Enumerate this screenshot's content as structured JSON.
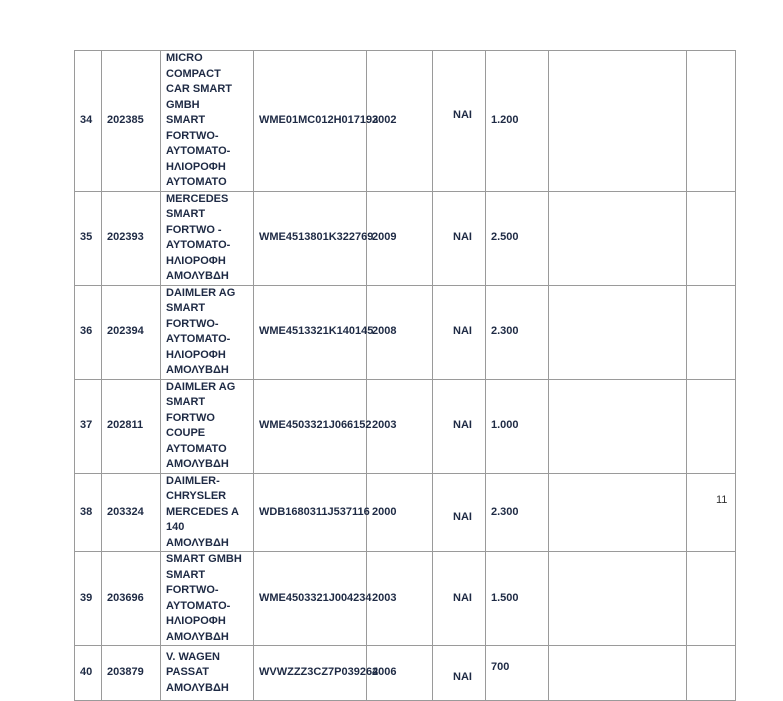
{
  "rows": [
    {
      "no": "34",
      "code": "202385",
      "desc": [
        "MICRO COMPACT",
        "CAR SMART GMBH",
        "SMART FORTWO-",
        "ΑΥΤΟΜΑΤΟ-",
        "ΗΛΙΟΡΟΦΗ",
        "ΑΥΤΟΜΑΤΟ"
      ],
      "vin": "WME01MC012H017193",
      "year": "2002",
      "flag": "ΝΑΙ",
      "price": "1.200"
    },
    {
      "no": "35",
      "code": "202393",
      "desc": [
        "MERCEDES",
        "SMART FORTWO -",
        "ΑΥΤΟΜΑΤΟ-",
        "ΗΛΙΟΡΟΦΗ",
        "ΑΜΟΛΥΒΔΗ"
      ],
      "vin": "WME4513801K322769",
      "year": "2009",
      "flag": "ΝΑΙ",
      "price": "2.500"
    },
    {
      "no": "36",
      "code": "202394",
      "desc": [
        "DAIMLER AG",
        "SMART FORTWO-",
        "ΑΥΤΟΜΑΤΟ-",
        "ΗΛΙΟΡΟΦΗ",
        "ΑΜΟΛΥΒΔΗ"
      ],
      "vin": "WME4513321K140145",
      "year": "2008",
      "flag": "ΝΑΙ",
      "price": "2.300"
    },
    {
      "no": "37",
      "code": "202811",
      "desc": [
        "DAIMLER AG",
        "SMART FORTWO",
        "COUPE",
        "ΑΥΤΟΜΑΤΟ",
        "ΑΜΟΛΥΒΔΗ"
      ],
      "vin": "WME4503321J066152",
      "year": "2003",
      "flag": "ΝΑΙ",
      "price": "1.000"
    },
    {
      "no": "38",
      "code": "203324",
      "desc": [
        "DAIMLER-",
        "CHRYSLER",
        "MERCEDES A 140",
        "ΑΜΟΛΥΒΔΗ"
      ],
      "vin": "WDB1680311J537116",
      "year": "2000",
      "flag": "ΝΑΙ",
      "price": "2.300"
    },
    {
      "no": "39",
      "code": "203696",
      "desc": [
        "SMART GMBH",
        "SMART FORTWO-",
        "ΑΥΤΟΜΑΤΟ-",
        "ΗΛΙΟΡΟΦΗ",
        "ΑΜΟΛΥΒΔΗ"
      ],
      "vin": "WME4503321J004234",
      "year": "2003",
      "flag": "ΝΑΙ",
      "price": "1.500"
    },
    {
      "no": "40",
      "code": "203879",
      "desc": [
        "V. WAGEN  PASSAT",
        "ΑΜΟΛΥΒΔΗ"
      ],
      "vin": "WVWZZZ3CZ7P039264",
      "year": "2006",
      "flag": "ΝΑΙ",
      "price": "700"
    }
  ],
  "page_number": "11"
}
